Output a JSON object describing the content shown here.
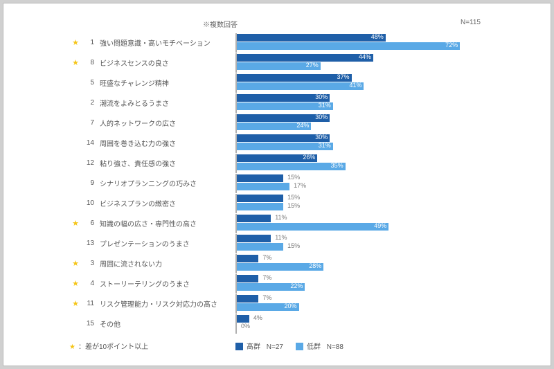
{
  "chart": {
    "type": "bar",
    "header_note": "※複数回答",
    "n_total_label": "N=115",
    "max_value": 80,
    "colors": {
      "high": "#1f5fa8",
      "low": "#5aa9e6",
      "star": "#f5c518",
      "text": "#555555",
      "axis": "#b0b0b0",
      "background": "#ffffff"
    },
    "series": [
      {
        "key": "high",
        "label": "高群",
        "n": "N=27"
      },
      {
        "key": "low",
        "label": "低群",
        "n": "N=88"
      }
    ],
    "legend_note": "：差が10ポイント以上",
    "rows": [
      {
        "star": true,
        "rank": "1",
        "label": "強い問題意識・高いモチベーション",
        "high": 48,
        "low": 72
      },
      {
        "star": true,
        "rank": "8",
        "label": "ビジネスセンスの良さ",
        "high": 44,
        "low": 27
      },
      {
        "star": false,
        "rank": "5",
        "label": "旺盛なチャレンジ精神",
        "high": 37,
        "low": 41
      },
      {
        "star": false,
        "rank": "2",
        "label": "潮流をよみとるうまさ",
        "high": 30,
        "low": 31
      },
      {
        "star": false,
        "rank": "7",
        "label": "人的ネットワークの広さ",
        "high": 30,
        "low": 24
      },
      {
        "star": false,
        "rank": "14",
        "label": "周囲を巻き込む力の強さ",
        "high": 30,
        "low": 31
      },
      {
        "star": false,
        "rank": "12",
        "label": "粘り強さ、責任感の強さ",
        "high": 26,
        "low": 35
      },
      {
        "star": false,
        "rank": "9",
        "label": "シナリオプランニングの巧みさ",
        "high": 15,
        "low": 17
      },
      {
        "star": false,
        "rank": "10",
        "label": "ビジネスプランの緻密さ",
        "high": 15,
        "low": 15
      },
      {
        "star": true,
        "rank": "6",
        "label": "知識の幅の広さ・専門性の高さ",
        "high": 11,
        "low": 49
      },
      {
        "star": false,
        "rank": "13",
        "label": "プレゼンテーションのうまさ",
        "high": 11,
        "low": 15
      },
      {
        "star": true,
        "rank": "3",
        "label": "周囲に流されない力",
        "high": 7,
        "low": 28
      },
      {
        "star": true,
        "rank": "4",
        "label": "ストーリーテリングのうまさ",
        "high": 7,
        "low": 22
      },
      {
        "star": true,
        "rank": "11",
        "label": "リスク管理能力・リスク対応力の高さ",
        "high": 7,
        "low": 20
      },
      {
        "star": false,
        "rank": "15",
        "label": "その他",
        "high": 4,
        "low": 0
      }
    ]
  }
}
